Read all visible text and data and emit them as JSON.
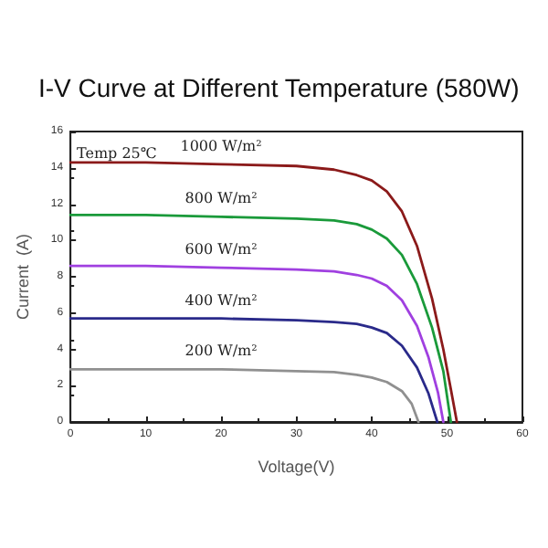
{
  "chart_data": {
    "type": "line",
    "title": "I-V Curve at Different Temperature (580W)",
    "xlabel": "Voltage(V)",
    "ylabel": "Current  (A)",
    "annotations": [
      "Temp 25℃"
    ],
    "series": [
      {
        "name": "1000 W/m²",
        "color": "#8b1a1a",
        "x": [
          0,
          10,
          20,
          30,
          35,
          38,
          40,
          42,
          44,
          46,
          48,
          49.5,
          50.5,
          51.3
        ],
        "values": [
          14.3,
          14.3,
          14.2,
          14.1,
          13.9,
          13.6,
          13.3,
          12.7,
          11.6,
          9.7,
          6.8,
          4,
          1.8,
          0
        ]
      },
      {
        "name": "800 W/m²",
        "color": "#1a9a3a",
        "x": [
          0,
          10,
          20,
          30,
          35,
          38,
          40,
          42,
          44,
          46,
          48,
          49.5,
          50.5
        ],
        "values": [
          11.4,
          11.4,
          11.3,
          11.2,
          11.1,
          10.9,
          10.6,
          10.1,
          9.2,
          7.6,
          5.2,
          2.8,
          0
        ]
      },
      {
        "name": "600 W/m²",
        "color": "#a040e0",
        "x": [
          0,
          10,
          20,
          30,
          35,
          38,
          40,
          42,
          44,
          46,
          47.5,
          48.8,
          49.5
        ],
        "values": [
          8.6,
          8.6,
          8.5,
          8.4,
          8.3,
          8.1,
          7.9,
          7.5,
          6.7,
          5.3,
          3.6,
          1.6,
          0
        ]
      },
      {
        "name": "400 W/m²",
        "color": "#2a2a8a",
        "x": [
          0,
          10,
          20,
          30,
          35,
          38,
          40,
          42,
          44,
          46,
          47.5,
          48.7
        ],
        "values": [
          5.7,
          5.7,
          5.7,
          5.6,
          5.5,
          5.4,
          5.2,
          4.9,
          4.2,
          3.0,
          1.6,
          0
        ]
      },
      {
        "name": "200 W/m²",
        "color": "#909090",
        "x": [
          0,
          10,
          20,
          30,
          35,
          38,
          40,
          42,
          44,
          45.3,
          46.2
        ],
        "values": [
          2.9,
          2.9,
          2.9,
          2.8,
          2.75,
          2.6,
          2.45,
          2.2,
          1.7,
          1.0,
          0
        ]
      }
    ],
    "xlim": [
      0,
      60
    ],
    "xticks": [
      0,
      10,
      20,
      30,
      40,
      50,
      60
    ],
    "ylim": [
      0,
      16
    ],
    "yticks": [
      0,
      2,
      4,
      6,
      8,
      10,
      12,
      14,
      16
    ],
    "grid": false,
    "legend": false,
    "marker": "none",
    "line_style": "solid"
  }
}
